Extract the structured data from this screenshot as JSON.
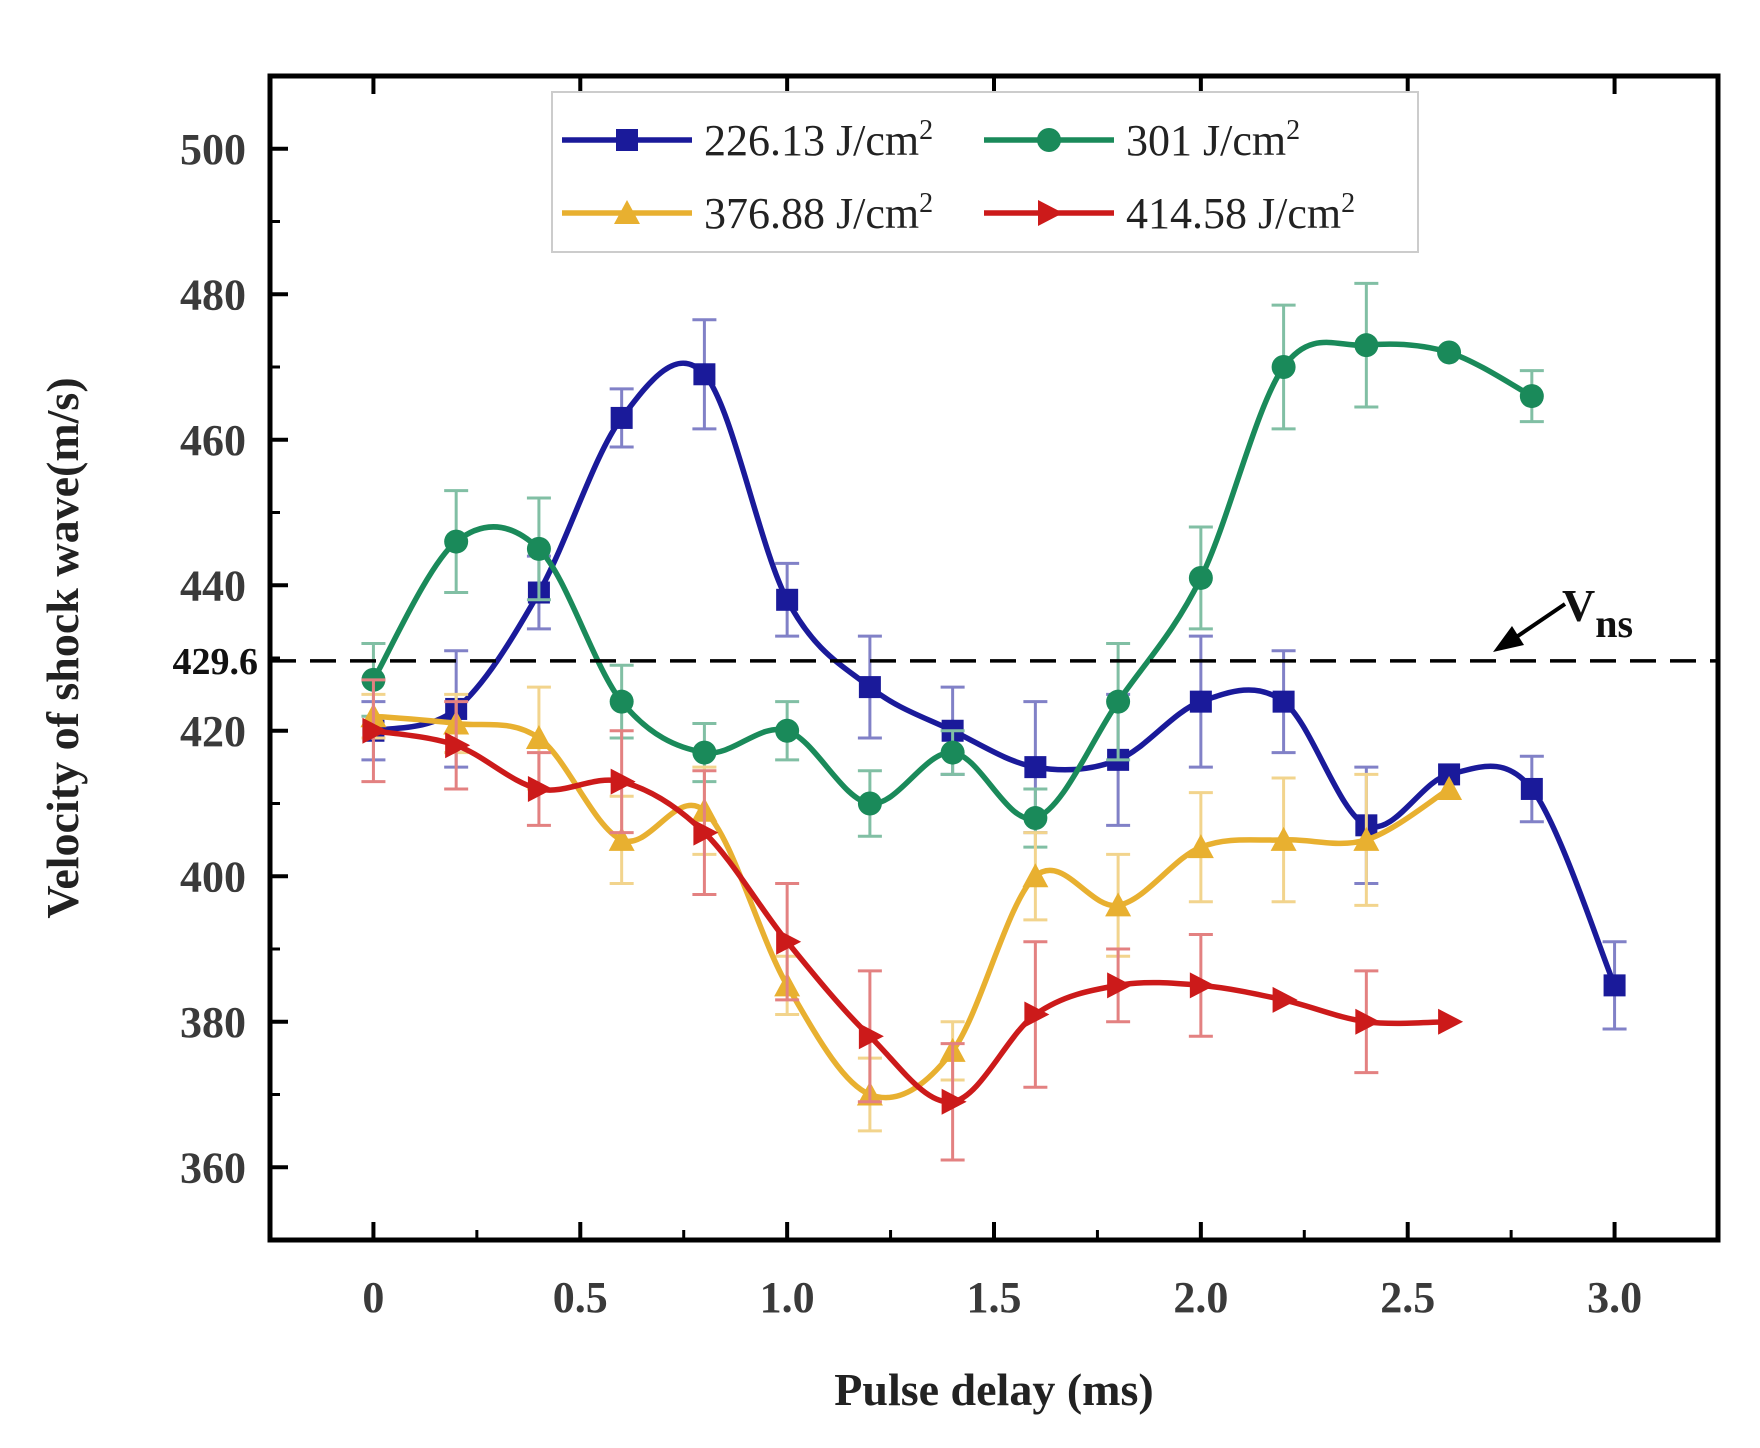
{
  "chart_data": {
    "type": "line",
    "title": "",
    "xlabel": "Pulse delay (ms)",
    "ylabel": "Velocity of shock wave(m/s)",
    "xlim": [
      -0.25,
      3.25
    ],
    "ylim": [
      350,
      510
    ],
    "x_ticks": [
      0,
      0.5,
      1.0,
      1.5,
      2.0,
      2.5,
      3.0
    ],
    "x_tick_labels": [
      "0",
      "0.5",
      "1.0",
      "1.5",
      "2.0",
      "2.5",
      "3.0"
    ],
    "y_ticks": [
      360,
      380,
      400,
      420,
      440,
      460,
      480,
      500
    ],
    "y_tick_labels": [
      "360",
      "380",
      "400",
      "420",
      "440",
      "460",
      "480",
      "500"
    ],
    "grid": false,
    "legend_position": "top-center",
    "reference_line": {
      "y": 429.6,
      "label": "429.6",
      "annotation": "V",
      "annotation_sub": "ns"
    },
    "series": [
      {
        "name": "226.13 J/cm",
        "unit_sup": "2",
        "color": "#1a1a9a",
        "marker": "square",
        "x": [
          0,
          0.2,
          0.4,
          0.6,
          0.8,
          1.0,
          1.2,
          1.4,
          1.6,
          1.8,
          2.0,
          2.2,
          2.4,
          2.6,
          2.8,
          3.0
        ],
        "y": [
          420,
          423,
          439,
          463,
          469,
          438,
          426,
          420,
          415,
          416,
          424,
          424,
          407,
          414,
          412,
          385
        ],
        "err": [
          4,
          8,
          5,
          4,
          7.5,
          5,
          7,
          6,
          9,
          9,
          9,
          7,
          8,
          0,
          4.5,
          6
        ]
      },
      {
        "name": "301 J/cm",
        "unit_sup": "2",
        "color": "#1a8a5a",
        "marker": "circle",
        "x": [
          0,
          0.2,
          0.4,
          0.6,
          0.8,
          1.0,
          1.2,
          1.4,
          1.6,
          1.8,
          2.0,
          2.2,
          2.4,
          2.6,
          2.8
        ],
        "y": [
          427,
          446,
          445,
          424,
          417,
          420,
          410,
          417,
          408,
          424,
          441,
          470,
          473,
          472,
          466
        ],
        "err": [
          5,
          7,
          7,
          5,
          4,
          4,
          4.5,
          3,
          4,
          8,
          7,
          8.5,
          8.5,
          0,
          3.5
        ]
      },
      {
        "name": "376.88 J/cm",
        "unit_sup": "2",
        "color": "#e8b030",
        "marker": "triangle-up",
        "x": [
          0,
          0.2,
          0.4,
          0.6,
          0.8,
          1.0,
          1.2,
          1.4,
          1.6,
          1.8,
          2.0,
          2.2,
          2.4,
          2.6
        ],
        "y": [
          422,
          421,
          419,
          405,
          409,
          385,
          370,
          376,
          400,
          396,
          404,
          405,
          405,
          412
        ],
        "err": [
          3,
          4,
          7,
          6,
          6,
          4,
          5,
          4,
          6,
          7,
          7.5,
          8.5,
          9,
          0
        ]
      },
      {
        "name": "414.58 J/cm",
        "unit_sup": "2",
        "color": "#cc1a1a",
        "marker": "triangle-right",
        "x": [
          0,
          0.2,
          0.4,
          0.6,
          0.8,
          1.0,
          1.2,
          1.4,
          1.6,
          1.8,
          2.0,
          2.2,
          2.4,
          2.6
        ],
        "y": [
          420,
          418,
          412,
          413,
          406,
          391,
          378,
          369,
          381,
          385,
          385,
          383,
          380,
          380
        ],
        "err": [
          7,
          6,
          5,
          7,
          8.5,
          8,
          9,
          8,
          10,
          5,
          7,
          0,
          7,
          0
        ]
      }
    ]
  }
}
